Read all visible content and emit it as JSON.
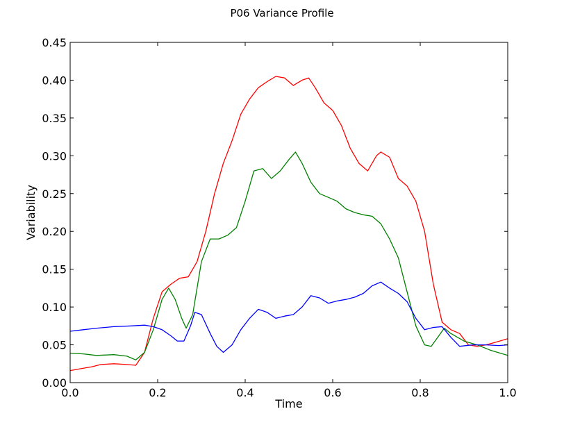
{
  "chart_data": {
    "type": "line",
    "title": "P06 Variance Profile",
    "xlabel": "Time",
    "ylabel": "Variability",
    "xlim": [
      0.0,
      1.0
    ],
    "ylim": [
      0.0,
      0.45
    ],
    "xticks": [
      "0.0",
      "0.2",
      "0.4",
      "0.6",
      "0.8",
      "1.0"
    ],
    "yticks": [
      "0.00",
      "0.05",
      "0.10",
      "0.15",
      "0.20",
      "0.25",
      "0.30",
      "0.35",
      "0.40",
      "0.45"
    ],
    "grid": false,
    "legend": "none",
    "series": [
      {
        "color": "#ff0000",
        "x": [
          0.0,
          0.02,
          0.05,
          0.07,
          0.1,
          0.13,
          0.15,
          0.17,
          0.19,
          0.21,
          0.23,
          0.25,
          0.27,
          0.29,
          0.31,
          0.33,
          0.35,
          0.37,
          0.39,
          0.41,
          0.43,
          0.45,
          0.47,
          0.49,
          0.51,
          0.53,
          0.545,
          0.56,
          0.58,
          0.6,
          0.62,
          0.64,
          0.66,
          0.68,
          0.7,
          0.71,
          0.73,
          0.75,
          0.77,
          0.79,
          0.81,
          0.83,
          0.85,
          0.87,
          0.89,
          0.91,
          0.93,
          0.95,
          0.97,
          1.0
        ],
        "y": [
          0.016,
          0.018,
          0.021,
          0.024,
          0.025,
          0.024,
          0.023,
          0.04,
          0.085,
          0.12,
          0.13,
          0.138,
          0.14,
          0.16,
          0.2,
          0.25,
          0.29,
          0.32,
          0.355,
          0.375,
          0.39,
          0.398,
          0.405,
          0.403,
          0.393,
          0.4,
          0.403,
          0.39,
          0.37,
          0.36,
          0.34,
          0.31,
          0.29,
          0.28,
          0.3,
          0.305,
          0.298,
          0.27,
          0.26,
          0.24,
          0.2,
          0.13,
          0.08,
          0.07,
          0.065,
          0.05,
          0.048,
          0.05,
          0.053,
          0.058
        ]
      },
      {
        "color": "#008000",
        "x": [
          0.0,
          0.03,
          0.06,
          0.1,
          0.13,
          0.15,
          0.17,
          0.19,
          0.21,
          0.225,
          0.24,
          0.255,
          0.265,
          0.28,
          0.3,
          0.32,
          0.34,
          0.36,
          0.38,
          0.4,
          0.42,
          0.44,
          0.46,
          0.48,
          0.5,
          0.515,
          0.53,
          0.55,
          0.57,
          0.59,
          0.61,
          0.63,
          0.65,
          0.67,
          0.69,
          0.71,
          0.73,
          0.75,
          0.77,
          0.79,
          0.81,
          0.825,
          0.84,
          0.855,
          0.87,
          0.9,
          0.93,
          0.96,
          1.0
        ],
        "y": [
          0.039,
          0.038,
          0.036,
          0.037,
          0.035,
          0.03,
          0.04,
          0.07,
          0.11,
          0.125,
          0.11,
          0.085,
          0.072,
          0.09,
          0.16,
          0.19,
          0.19,
          0.195,
          0.205,
          0.24,
          0.28,
          0.283,
          0.27,
          0.28,
          0.295,
          0.305,
          0.29,
          0.265,
          0.25,
          0.245,
          0.24,
          0.23,
          0.225,
          0.222,
          0.22,
          0.21,
          0.19,
          0.165,
          0.12,
          0.075,
          0.05,
          0.048,
          0.06,
          0.072,
          0.065,
          0.055,
          0.05,
          0.043,
          0.036
        ]
      },
      {
        "color": "#0000ff",
        "x": [
          0.0,
          0.03,
          0.06,
          0.1,
          0.14,
          0.17,
          0.19,
          0.21,
          0.23,
          0.245,
          0.26,
          0.275,
          0.285,
          0.3,
          0.32,
          0.335,
          0.35,
          0.37,
          0.39,
          0.41,
          0.43,
          0.45,
          0.47,
          0.49,
          0.51,
          0.53,
          0.55,
          0.57,
          0.59,
          0.61,
          0.63,
          0.65,
          0.67,
          0.69,
          0.71,
          0.73,
          0.75,
          0.77,
          0.79,
          0.81,
          0.83,
          0.85,
          0.87,
          0.89,
          0.92,
          0.95,
          0.98,
          1.0
        ],
        "y": [
          0.068,
          0.07,
          0.072,
          0.074,
          0.075,
          0.076,
          0.074,
          0.07,
          0.062,
          0.055,
          0.055,
          0.075,
          0.093,
          0.09,
          0.065,
          0.048,
          0.04,
          0.05,
          0.07,
          0.085,
          0.097,
          0.093,
          0.085,
          0.088,
          0.09,
          0.1,
          0.115,
          0.112,
          0.105,
          0.108,
          0.11,
          0.113,
          0.118,
          0.128,
          0.133,
          0.125,
          0.118,
          0.107,
          0.085,
          0.07,
          0.073,
          0.074,
          0.06,
          0.048,
          0.05,
          0.05,
          0.049,
          0.05
        ]
      }
    ]
  }
}
